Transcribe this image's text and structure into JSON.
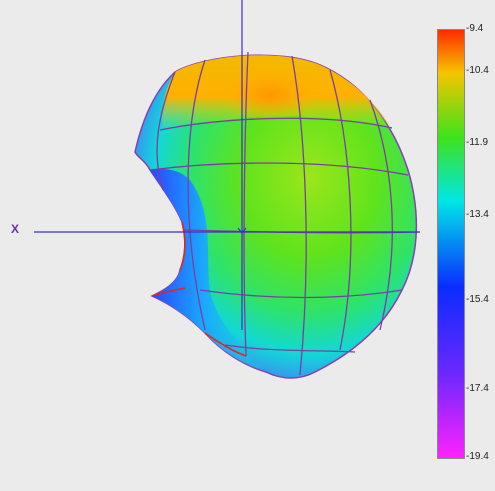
{
  "view": {
    "axis_label": "X"
  },
  "colorbar": {
    "labels": [
      "-9.4",
      "-10.4",
      "-11.9",
      "-13.4",
      "-15.4",
      "-17.4",
      "-19.4"
    ],
    "stops": [
      {
        "value": -9.4,
        "color": "#ff2a00"
      },
      {
        "value": -10.4,
        "color": "#f6c400"
      },
      {
        "value": -11.9,
        "color": "#3fe21a"
      },
      {
        "value": -13.4,
        "color": "#00e6e6"
      },
      {
        "value": -15.4,
        "color": "#0a2cff"
      },
      {
        "value": -17.4,
        "color": "#6a28ff"
      },
      {
        "value": -19.4,
        "color": "#ff22ff"
      }
    ]
  },
  "colors": {
    "background": "#ebebeb",
    "mesh_line": "#7a3fa0",
    "axis_line": "#3f2ccf",
    "crease": "#e4251b"
  }
}
